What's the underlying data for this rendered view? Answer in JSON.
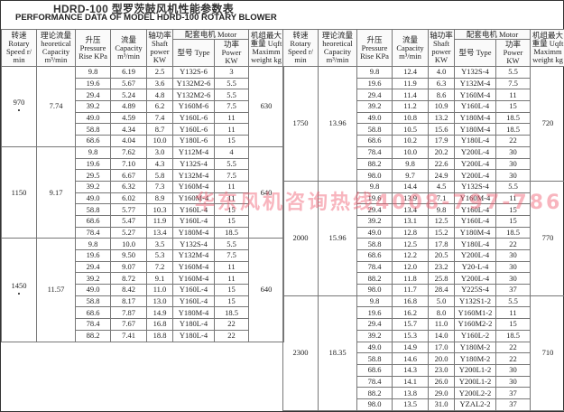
{
  "title": "HDRD-100 型罗茨鼓风机性能参数表",
  "subtitle": "PERFORMANCE DATA OF MODEL HDRD-100 ROTARY  BLOWER",
  "watermark": "华东风机咨询热线4008-797-786",
  "headers": {
    "speed": "转速 Rotary Speed r/ min",
    "theoretical": "理论流量 heoretical Capacity m³/min",
    "pressure": "升压 Pressure Rise KPa",
    "capacity": "流量 Capacity m³/min",
    "shaft": "轴功率 Shaft power KW",
    "motor": "配套电机 Motor",
    "type": "型号 Type",
    "power": "功率 Power KW",
    "weight": "机组最大重量 Uqft Maximm weight kg"
  },
  "groups": [
    {
      "speed": "970",
      "star": "•",
      "theoretical": "7.74",
      "weight": "630",
      "rows": [
        [
          "9.8",
          "6.19",
          "2.5",
          "Y132S-6",
          "3"
        ],
        [
          "19.6",
          "5.67",
          "3.6",
          "Y132M2-6",
          "5.5"
        ],
        [
          "29.4",
          "5.24",
          "4.8",
          "Y132M2-6",
          "5.5"
        ],
        [
          "39.2",
          "4.89",
          "6.2",
          "Y160M-6",
          "7.5"
        ],
        [
          "49.0",
          "4.59",
          "7.4",
          "Y160L-6",
          "11"
        ],
        [
          "58.8",
          "4.34",
          "8.7",
          "Y160L-6",
          "11"
        ],
        [
          "68.6",
          "4.04",
          "10.0",
          "Y180L-6",
          "15"
        ]
      ]
    },
    {
      "speed": "1150",
      "star": "",
      "theoretical": "9.17",
      "weight": "640",
      "rows": [
        [
          "9.8",
          "7.62",
          "3.0",
          "Y112M-4",
          "4"
        ],
        [
          "19.6",
          "7.10",
          "4.3",
          "Y132S-4",
          "5.5"
        ],
        [
          "29.5",
          "6.67",
          "5.8",
          "Y132M-4",
          "7.5"
        ],
        [
          "39.2",
          "6.32",
          "7.3",
          "Y160M-4",
          "11"
        ],
        [
          "49.0",
          "6.02",
          "8.9",
          "Y160M-4",
          "11"
        ],
        [
          "58.8",
          "5.77",
          "10.3",
          "Y160L-4",
          "15"
        ],
        [
          "68.6",
          "5.47",
          "11.9",
          "Y160L-4",
          "15"
        ],
        [
          "78.4",
          "5.27",
          "13.4",
          "Y180M-4",
          "18.5"
        ]
      ]
    },
    {
      "speed": "1450",
      "star": "•",
      "theoretical": "11.57",
      "weight": "640",
      "rows": [
        [
          "9.8",
          "10.0",
          "3.5",
          "Y132S-4",
          "5.5"
        ],
        [
          "19.6",
          "9.50",
          "5.3",
          "Y132M-4",
          "7.5"
        ],
        [
          "29.4",
          "9.07",
          "7.2",
          "Y160M-4",
          "11"
        ],
        [
          "39.2",
          "8.72",
          "9.1",
          "Y160M-4",
          "11"
        ],
        [
          "49.0",
          "8.42",
          "11.0",
          "Y160L-4",
          "15"
        ],
        [
          "58.8",
          "8.17",
          "13.0",
          "Y160L-4",
          "15"
        ],
        [
          "68.6",
          "7.87",
          "14.9",
          "Y180M-4",
          "18.5"
        ],
        [
          "78.4",
          "7.67",
          "16.8",
          "Y180L-4",
          "22"
        ],
        [
          "88.2",
          "7.41",
          "18.8",
          "Y180L-4",
          "22"
        ]
      ]
    },
    {
      "speed": "1750",
      "star": "",
      "theoretical": "13.96",
      "weight": "720",
      "rows": [
        [
          "9.8",
          "12.4",
          "4.0",
          "Y132S-4",
          "5.5"
        ],
        [
          "19.6",
          "11.9",
          "6.3",
          "Y132M-4",
          "7.5"
        ],
        [
          "29.4",
          "11.4",
          "8.6",
          "Y160M-4",
          "11"
        ],
        [
          "39.2",
          "11.2",
          "10.9",
          "Y160L-4",
          "15"
        ],
        [
          "49.0",
          "10.8",
          "13.2",
          "Y180M-4",
          "18.5"
        ],
        [
          "58.8",
          "10.5",
          "15.6",
          "Y180M-4",
          "18.5"
        ],
        [
          "68.6",
          "10.2",
          "17.9",
          "Y180L-4",
          "22"
        ],
        [
          "78.4",
          "10.0",
          "20.2",
          "Y200L-4",
          "30"
        ],
        [
          "88.2",
          "9.8",
          "22.6",
          "Y200L-4",
          "30"
        ],
        [
          "98.0",
          "9.7",
          "24.9",
          "Y200L-4",
          "30"
        ]
      ]
    },
    {
      "speed": "2000",
      "star": "",
      "theoretical": "15.96",
      "weight": "770",
      "rows": [
        [
          "9.8",
          "14.4",
          "4.5",
          "Y132S-4",
          "5.5"
        ],
        [
          "19.6",
          "13.9",
          "7.1",
          "Y160M-4",
          "11"
        ],
        [
          "29.4",
          "13.4",
          "9.8",
          "Y160L-4",
          "15"
        ],
        [
          "39.2",
          "13.1",
          "12.5",
          "Y160L-4",
          "15"
        ],
        [
          "49.0",
          "12.8",
          "15.2",
          "Y180M-4",
          "18.5"
        ],
        [
          "58.8",
          "12.5",
          "17.8",
          "Y180L-4",
          "22"
        ],
        [
          "68.6",
          "12.2",
          "20.5",
          "Y200L-4",
          "30"
        ],
        [
          "78.4",
          "12.0",
          "23.2",
          "Y20-L-4",
          "30"
        ],
        [
          "88.2",
          "11.8",
          "25.8",
          "Y200L-4",
          "30"
        ],
        [
          "98.0",
          "11.7",
          "28.4",
          "Y225S-4",
          "37"
        ]
      ]
    },
    {
      "speed": "2300",
      "star": "",
      "theoretical": "18.35",
      "weight": "710",
      "rows": [
        [
          "9.8",
          "16.8",
          "5.0",
          "Y132S1-2",
          "5.5"
        ],
        [
          "19.6",
          "16.2",
          "8.0",
          "Y160M1-2",
          "11"
        ],
        [
          "29.4",
          "15.7",
          "11.0",
          "Y160M2-2",
          "15"
        ],
        [
          "39.2",
          "15.3",
          "14.0",
          "Y160L-2",
          "18.5"
        ],
        [
          "49.0",
          "14.9",
          "17.0",
          "Y180M-2",
          "22"
        ],
        [
          "58.8",
          "14.6",
          "20.0",
          "Y180M-2",
          "22"
        ],
        [
          "68.6",
          "14.3",
          "23.0",
          "Y200L1-2",
          "30"
        ],
        [
          "78.4",
          "14.1",
          "26.0",
          "Y200L1-2",
          "30"
        ],
        [
          "88.2",
          "13.8",
          "29.0",
          "Y200L2-2",
          "37"
        ],
        [
          "98.0",
          "13.5",
          "31.0",
          "YZAL2-2",
          "37"
        ]
      ]
    }
  ]
}
